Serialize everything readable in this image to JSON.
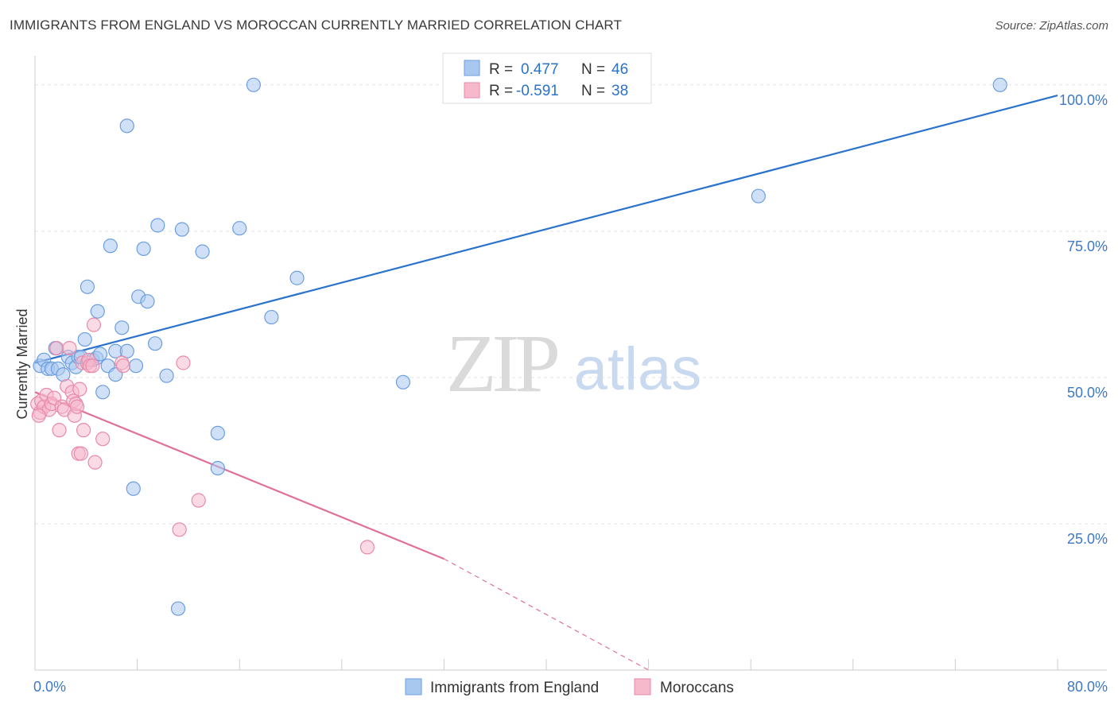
{
  "header": {
    "title": "IMMIGRANTS FROM ENGLAND VS MOROCCAN CURRENTLY MARRIED CORRELATION CHART",
    "source": "Source: ZipAtlas.com"
  },
  "watermark": {
    "zip": "ZIP",
    "atlas": "atlas"
  },
  "colors": {
    "england_fill": "#a9c8f0",
    "england_stroke": "#6b9ee0",
    "england_line": "#2a72cc",
    "moroccan_fill": "#f6b8cb",
    "moroccan_stroke": "#e88aa8",
    "moroccan_line": "#e0709a",
    "tick_text": "#3e78c8"
  },
  "stats_legend": {
    "rows": [
      {
        "r_label": "R =",
        "r_value": "0.477",
        "n_label": "N =",
        "n_value": "46"
      },
      {
        "r_label": "R =",
        "r_value": "-0.591",
        "n_label": "N =",
        "n_value": "38"
      }
    ]
  },
  "chart_data": {
    "type": "scatter",
    "xlabel": "",
    "ylabel": "Currently Married",
    "xlim": [
      0,
      80
    ],
    "ylim": [
      0,
      105
    ],
    "x_tick_labels": [
      "0.0%",
      "80.0%"
    ],
    "y_ticks": [
      {
        "value": 25,
        "label": "25.0%"
      },
      {
        "value": 50,
        "label": "50.0%"
      },
      {
        "value": 75,
        "label": "75.0%"
      },
      {
        "value": 100,
        "label": "100.0%"
      }
    ],
    "grid": true,
    "legend_placement": "bottom-center",
    "series": [
      {
        "name": "Immigrants from England",
        "points": [
          [
            0.4,
            52.0
          ],
          [
            0.7,
            53.0
          ],
          [
            1.0,
            51.5
          ],
          [
            1.3,
            51.5
          ],
          [
            1.6,
            55.0
          ],
          [
            1.8,
            51.5
          ],
          [
            2.2,
            50.5
          ],
          [
            2.6,
            53.5
          ],
          [
            2.9,
            52.5
          ],
          [
            3.2,
            51.8
          ],
          [
            3.4,
            53.5
          ],
          [
            3.6,
            53.5
          ],
          [
            3.9,
            56.5
          ],
          [
            4.1,
            65.5
          ],
          [
            4.5,
            53.0
          ],
          [
            4.8,
            53.3
          ],
          [
            4.9,
            61.3
          ],
          [
            5.1,
            54.0
          ],
          [
            5.3,
            47.5
          ],
          [
            5.7,
            52.0
          ],
          [
            5.9,
            72.5
          ],
          [
            6.3,
            50.5
          ],
          [
            6.3,
            54.5
          ],
          [
            6.8,
            58.5
          ],
          [
            7.2,
            54.5
          ],
          [
            7.2,
            93.0
          ],
          [
            7.7,
            31.0
          ],
          [
            7.9,
            52.0
          ],
          [
            8.1,
            63.8
          ],
          [
            8.5,
            72.0
          ],
          [
            8.8,
            63.0
          ],
          [
            9.4,
            55.8
          ],
          [
            9.6,
            76.0
          ],
          [
            10.3,
            50.3
          ],
          [
            11.2,
            10.5
          ],
          [
            11.5,
            75.3
          ],
          [
            13.1,
            71.5
          ],
          [
            14.3,
            40.5
          ],
          [
            14.3,
            34.5
          ],
          [
            16.0,
            75.5
          ],
          [
            17.1,
            100.0
          ],
          [
            18.5,
            60.3
          ],
          [
            20.5,
            67.0
          ],
          [
            28.8,
            49.2
          ],
          [
            56.6,
            81.0
          ],
          [
            75.5,
            100.0
          ]
        ],
        "trend": {
          "x": [
            0,
            80
          ],
          "y": [
            52.5,
            98.2
          ]
        }
      },
      {
        "name": "Moroccans",
        "points": [
          [
            0.2,
            45.5
          ],
          [
            0.4,
            44.0
          ],
          [
            0.5,
            46.0
          ],
          [
            0.7,
            45.0
          ],
          [
            0.9,
            47.0
          ],
          [
            1.1,
            44.5
          ],
          [
            1.3,
            45.5
          ],
          [
            1.5,
            46.5
          ],
          [
            1.7,
            55.0
          ],
          [
            1.9,
            41.0
          ],
          [
            2.1,
            45.0
          ],
          [
            2.3,
            44.5
          ],
          [
            2.5,
            48.5
          ],
          [
            2.7,
            55.0
          ],
          [
            2.9,
            47.5
          ],
          [
            3.0,
            46.0
          ],
          [
            3.1,
            43.5
          ],
          [
            3.2,
            45.5
          ],
          [
            3.3,
            45.0
          ],
          [
            3.4,
            37.0
          ],
          [
            3.5,
            48.0
          ],
          [
            3.6,
            37.0
          ],
          [
            3.7,
            52.5
          ],
          [
            3.8,
            41.0
          ],
          [
            4.1,
            52.5
          ],
          [
            4.2,
            53.0
          ],
          [
            4.3,
            52.0
          ],
          [
            4.5,
            52.0
          ],
          [
            4.6,
            59.0
          ],
          [
            4.7,
            35.5
          ],
          [
            5.3,
            39.5
          ],
          [
            6.8,
            52.5
          ],
          [
            6.9,
            52.0
          ],
          [
            11.3,
            24.0
          ],
          [
            11.6,
            52.5
          ],
          [
            12.8,
            29.0
          ],
          [
            26.0,
            21.0
          ],
          [
            0.3,
            43.5
          ]
        ],
        "trend": {
          "x": [
            0,
            32
          ],
          "y": [
            47.5,
            19.0
          ]
        },
        "trend_extension": {
          "x": [
            32,
            48
          ],
          "y": [
            19.0,
            0.0
          ]
        }
      }
    ]
  }
}
